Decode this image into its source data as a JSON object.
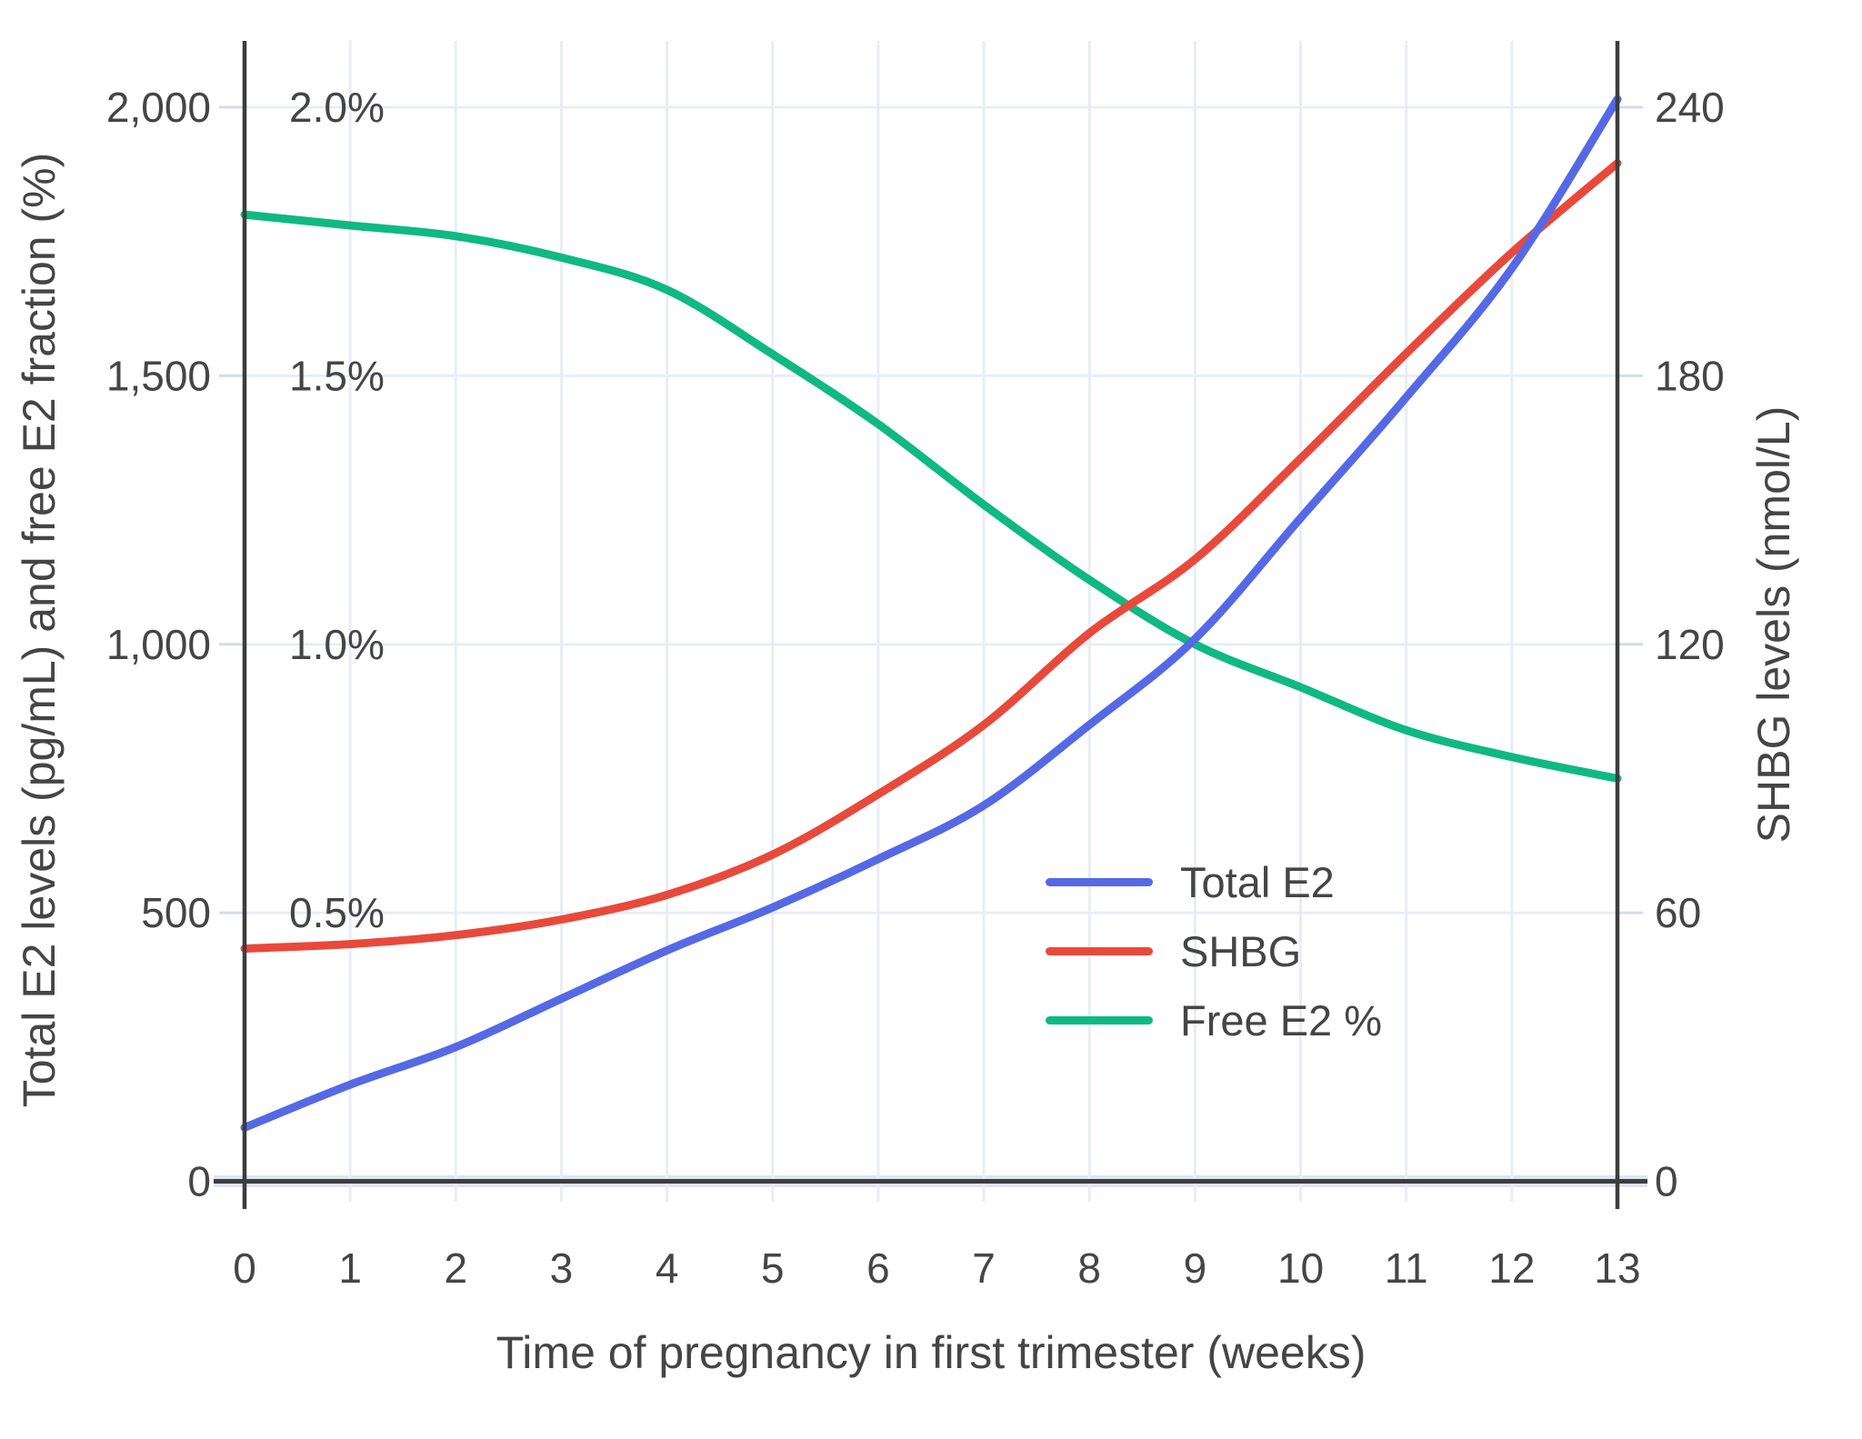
{
  "chart_data": {
    "type": "line",
    "title": "",
    "xlabel": "Time of pregnancy in first trimester (weeks)",
    "ylabel_left": "Total E2 levels (pg/mL) and free E2 fraction (%)",
    "ylabel_right": "SHBG levels (nmol/L)",
    "x": [
      0,
      1,
      2,
      3,
      4,
      5,
      6,
      7,
      8,
      9,
      10,
      11,
      12,
      13
    ],
    "left_axis": {
      "min": 0,
      "max": 2000,
      "tick_values": [
        0,
        500,
        1000,
        1500,
        2000
      ],
      "labels": [
        "0",
        "500",
        "1,000",
        "1,500",
        "2,000"
      ]
    },
    "percent_axis": {
      "min": 0,
      "max": 2.0,
      "tick_values": [
        0.5,
        1.0,
        1.5,
        2.0
      ],
      "labels": [
        "0.5%",
        "1.0%",
        "1.5%",
        "2.0%"
      ]
    },
    "right_axis": {
      "min": 0,
      "max": 240,
      "tick_values": [
        0,
        60,
        120,
        180,
        240
      ],
      "labels": [
        "0",
        "60",
        "120",
        "180",
        "240"
      ]
    },
    "grid": true,
    "legend_position": "center-right",
    "series": [
      {
        "name": "Total E2",
        "axis": "left",
        "unit": "pg/mL",
        "color": "#5569e6",
        "values": [
          100,
          180,
          250,
          340,
          430,
          510,
          600,
          700,
          850,
          1010,
          1235,
          1460,
          1700,
          2015
        ]
      },
      {
        "name": "SHBG",
        "axis": "right",
        "unit": "nmol/L",
        "color": "#e9493b",
        "values": [
          52,
          53,
          55,
          58.5,
          64,
          73,
          86.5,
          102,
          122.5,
          139,
          161.5,
          185,
          207.5,
          227.5
        ]
      },
      {
        "name": "Free E2 %",
        "axis": "percent",
        "unit": "%",
        "color": "#0fb981",
        "values": [
          1.8,
          1.78,
          1.76,
          1.72,
          1.66,
          1.54,
          1.41,
          1.26,
          1.12,
          1.0,
          0.92,
          0.84,
          0.79,
          0.75
        ]
      }
    ]
  },
  "colors": {
    "background": "#ffffff",
    "grid": "#e7ecf7",
    "axis_line": "#3d3d3d",
    "baseline_halo": "#dde5f4",
    "tick_stub": "#d4dcee",
    "text": "#454545"
  }
}
